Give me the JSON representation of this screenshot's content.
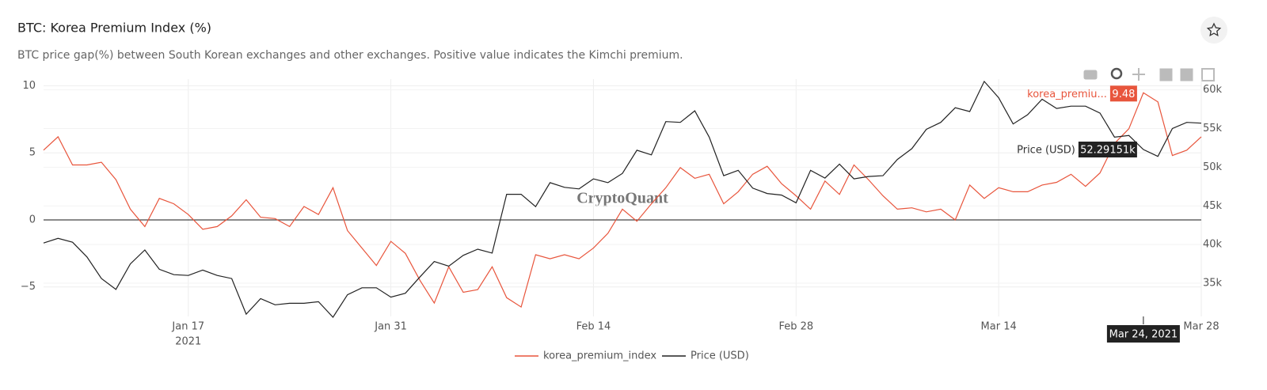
{
  "chart_data": {
    "type": "line",
    "title": "BTC: Korea Premium Index (%)",
    "subtitle": "BTC price gap(%) between South Korean exchanges and other exchanges. Positive value indicates the Kimchi premium.",
    "watermark": "CryptoQuant",
    "x": [
      "2021-01-07",
      "2021-01-08",
      "2021-01-09",
      "2021-01-10",
      "2021-01-11",
      "2021-01-12",
      "2021-01-13",
      "2021-01-14",
      "2021-01-15",
      "2021-01-16",
      "2021-01-17",
      "2021-01-18",
      "2021-01-19",
      "2021-01-20",
      "2021-01-21",
      "2021-01-22",
      "2021-01-23",
      "2021-01-24",
      "2021-01-25",
      "2021-01-26",
      "2021-01-27",
      "2021-01-28",
      "2021-01-29",
      "2021-01-30",
      "2021-01-31",
      "2021-02-01",
      "2021-02-02",
      "2021-02-03",
      "2021-02-04",
      "2021-02-05",
      "2021-02-06",
      "2021-02-07",
      "2021-02-08",
      "2021-02-09",
      "2021-02-10",
      "2021-02-11",
      "2021-02-12",
      "2021-02-13",
      "2021-02-14",
      "2021-02-15",
      "2021-02-16",
      "2021-02-17",
      "2021-02-18",
      "2021-02-19",
      "2021-02-20",
      "2021-02-21",
      "2021-02-22",
      "2021-02-23",
      "2021-02-24",
      "2021-02-25",
      "2021-02-26",
      "2021-02-27",
      "2021-02-28",
      "2021-03-01",
      "2021-03-02",
      "2021-03-03",
      "2021-03-04",
      "2021-03-05",
      "2021-03-06",
      "2021-03-07",
      "2021-03-08",
      "2021-03-09",
      "2021-03-10",
      "2021-03-11",
      "2021-03-12",
      "2021-03-13",
      "2021-03-14",
      "2021-03-15",
      "2021-03-16",
      "2021-03-17",
      "2021-03-18",
      "2021-03-19",
      "2021-03-20",
      "2021-03-21",
      "2021-03-22",
      "2021-03-23",
      "2021-03-24",
      "2021-03-25",
      "2021-03-26",
      "2021-03-27",
      "2021-03-28"
    ],
    "xlim": [
      "2021-01-07",
      "2021-03-28"
    ],
    "xticks": [
      {
        "value": "2021-01-17",
        "label": "Jan 17"
      },
      {
        "value": "2021-01-31",
        "label": "Jan 31"
      },
      {
        "value": "2021-02-14",
        "label": "Feb 14"
      },
      {
        "value": "2021-02-28",
        "label": "Feb 28"
      },
      {
        "value": "2021-03-14",
        "label": "Mar 14"
      },
      {
        "value": "2021-03-28",
        "label": "Mar 28"
      }
    ],
    "xtick_year": "2021",
    "ylim": [
      -7.2,
      10.5
    ],
    "yticks": [
      {
        "value": -5,
        "label": "−5"
      },
      0,
      5,
      10
    ],
    "y2lim": [
      30700,
      61400
    ],
    "y2ticks": [
      {
        "value": 35000,
        "label": "35k"
      },
      {
        "value": 40000,
        "label": "40k"
      },
      {
        "value": 45000,
        "label": "45k"
      },
      {
        "value": 50000,
        "label": "50k"
      },
      {
        "value": 55000,
        "label": "55k"
      },
      {
        "value": 60000,
        "label": "60k"
      }
    ],
    "grid": true,
    "legend": "bottom",
    "series": [
      {
        "name": "korea_premium_index",
        "color": "#e8553c",
        "values": [
          5.2,
          6.2,
          4.1,
          4.1,
          4.3,
          3.0,
          0.8,
          -0.5,
          1.6,
          1.2,
          0.4,
          -0.7,
          -0.5,
          0.3,
          1.5,
          0.2,
          0.1,
          -0.5,
          1.0,
          0.4,
          2.4,
          -0.8,
          -2.1,
          -3.4,
          -1.6,
          -2.5,
          -4.5,
          -6.2,
          -3.5,
          -5.4,
          -5.2,
          -3.5,
          -5.8,
          -6.5,
          -2.6,
          -2.9,
          -2.6,
          -2.9,
          -2.1,
          -1.0,
          0.8,
          -0.1,
          1.2,
          2.4,
          3.9,
          3.1,
          3.4,
          1.2,
          2.1,
          3.4,
          4.0,
          2.7,
          1.8,
          0.8,
          2.9,
          1.9,
          4.1,
          3.0,
          1.8,
          0.8,
          0.9,
          0.6,
          0.8,
          0.0,
          2.6,
          1.6,
          2.4,
          2.1,
          2.1,
          2.6,
          2.8,
          3.4,
          2.5,
          3.5,
          5.7,
          6.8,
          9.48,
          8.8,
          4.8,
          5.2,
          6.2
        ]
      },
      {
        "name": "Price (USD)",
        "color": "#222222",
        "axis": "y2",
        "values": [
          40200,
          40800,
          40300,
          38400,
          35600,
          34200,
          37500,
          39300,
          36800,
          36100,
          36000,
          36700,
          36000,
          35600,
          31000,
          33000,
          32200,
          32400,
          32400,
          32600,
          30600,
          33500,
          34400,
          34400,
          33200,
          33700,
          35800,
          37800,
          37200,
          38600,
          39400,
          38900,
          46500,
          46500,
          44900,
          48000,
          47400,
          47200,
          48500,
          48000,
          49200,
          52200,
          51600,
          55900,
          55800,
          57300,
          53900,
          48900,
          49600,
          47300,
          46600,
          46400,
          45400,
          49600,
          48600,
          50400,
          48500,
          48800,
          48900,
          51000,
          52400,
          54900,
          55800,
          57700,
          57200,
          61100,
          59000,
          55600,
          56800,
          58800,
          57600,
          57900,
          57900,
          57000,
          53900,
          54100,
          52291.51,
          51400,
          55000,
          55800,
          55700
        ]
      }
    ],
    "hover": {
      "x": "2021-03-24",
      "label": "Mar 24, 2021",
      "series_labels": [
        "korea_premiu...",
        "Price (USD)"
      ],
      "value_labels": [
        "9.48",
        "52.29151k"
      ]
    }
  }
}
